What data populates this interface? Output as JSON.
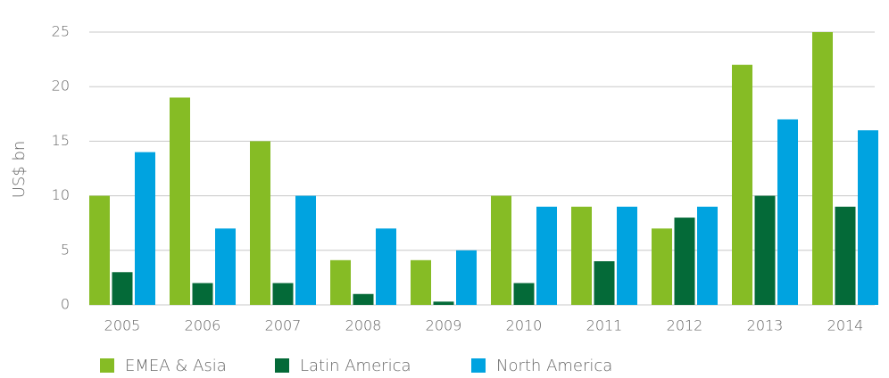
{
  "chart_data": {
    "type": "bar",
    "y_label": "US$ bn",
    "categories": [
      "2005",
      "2006",
      "2007",
      "2008",
      "2009",
      "2010",
      "2011",
      "2012",
      "2013",
      "2014"
    ],
    "series": [
      {
        "name": "EMEA & Asia",
        "color": "#86bc25",
        "values": [
          10,
          19,
          15,
          4.1,
          4.1,
          10,
          9,
          7,
          22,
          25
        ]
      },
      {
        "name": "Latin America",
        "color": "#046a38",
        "values": [
          3,
          2,
          2,
          1,
          0.3,
          2,
          4,
          8,
          10,
          9
        ]
      },
      {
        "name": "North America",
        "color": "#00a3e0",
        "values": [
          14,
          7,
          10,
          7,
          5,
          9,
          9,
          9,
          17,
          16
        ]
      }
    ],
    "ylim": [
      0,
      25
    ],
    "yticks": [
      0,
      5,
      10,
      15,
      20,
      25
    ],
    "grid": true,
    "legend": "bottom"
  }
}
